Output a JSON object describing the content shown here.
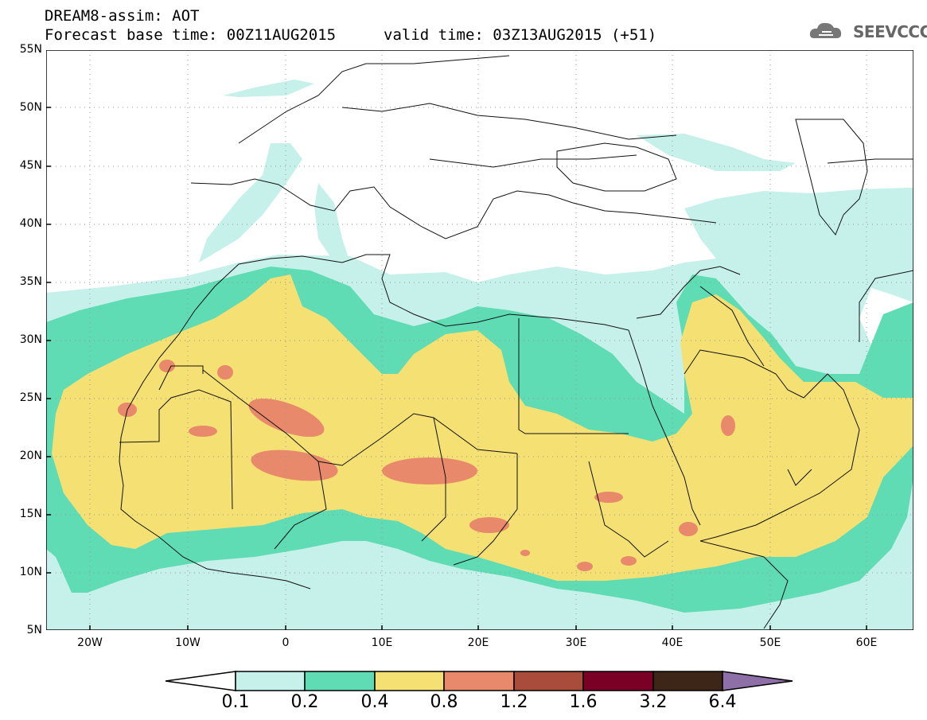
{
  "header": {
    "title_line1": "DREAM8-assim: AOT",
    "title_line2": "Forecast base time: 00Z11AUG2015",
    "valid_time": "valid time: 03Z13AUG2015 (+51)",
    "logo_text": "SEEVCCC"
  },
  "map": {
    "lat_labels": [
      "55N",
      "50N",
      "45N",
      "40N",
      "35N",
      "30N",
      "25N",
      "20N",
      "15N",
      "10N",
      "5N"
    ],
    "lon_labels": [
      "20W",
      "10W",
      "0",
      "10E",
      "20E",
      "30E",
      "40E",
      "50E",
      "60E"
    ],
    "lon_range": [
      -25,
      65
    ],
    "lat_range": [
      5,
      55
    ],
    "grid": "dotted"
  },
  "colorbar": {
    "labels": [
      "0.1",
      "0.2",
      "0.4",
      "0.8",
      "1.2",
      "1.6",
      "3.2",
      "6.4"
    ],
    "colors": [
      "#ffffff",
      "#c6f0ea",
      "#5fdcb4",
      "#f5e073",
      "#e7896a",
      "#a94c3c",
      "#7a0025",
      "#3d2618",
      "#8e6fa7"
    ]
  },
  "field_colors": {
    "aot_0_1": "#c6f0ea",
    "aot_0_2": "#5fdcb4",
    "aot_0_4": "#f5e073",
    "aot_0_8": "#e7896a"
  }
}
